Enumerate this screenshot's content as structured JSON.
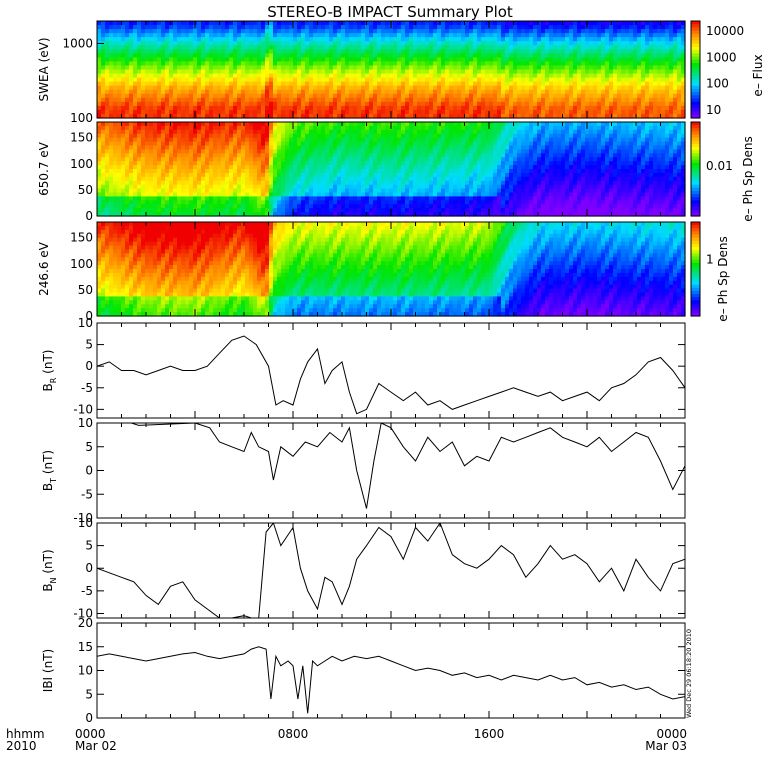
{
  "title": "STEREO-B IMPACT Summary Plot",
  "time_axis": {
    "row1_label": "hhmm",
    "row2_label": "2010",
    "ticks": [
      {
        "hour": 0,
        "label": "0000",
        "date": "Mar 02"
      },
      {
        "hour": 8,
        "label": "0800",
        "date": ""
      },
      {
        "hour": 16,
        "label": "1600",
        "date": ""
      },
      {
        "hour": 24,
        "label": "0000",
        "date": "Mar 03"
      }
    ]
  },
  "timestamp": "Wed Dec 29 06:18:20 2010",
  "chart_data": [
    {
      "type": "heatmap",
      "ylabel": "SWEA (eV)",
      "yscale": "log",
      "ylim": [
        100,
        2000
      ],
      "yticks": [
        "1000",
        "100"
      ],
      "colorbar": {
        "label": "e– Flux",
        "scale": "log",
        "ticks": [
          "10000",
          "1000",
          "100",
          "10"
        ]
      },
      "bands": [
        {
          "y": 130,
          "level": 0.95
        },
        {
          "y": 250,
          "level": 0.82
        },
        {
          "y": 500,
          "level": 0.62
        },
        {
          "y": 1000,
          "level": 0.4
        },
        {
          "y": 1800,
          "level": 0.18
        }
      ]
    },
    {
      "type": "heatmap",
      "ylabel": "650.7 eV",
      "ylim": [
        0,
        180
      ],
      "yticks": [
        "150",
        "100",
        "50",
        "0"
      ],
      "colorbar": {
        "label": "e– Ph Sp Dens",
        "scale": "log",
        "ticks": [
          "0.01"
        ]
      },
      "profile": {
        "hours": [
          0,
          2,
          4,
          6,
          6.9,
          7.2,
          8,
          10,
          12,
          14,
          16,
          17,
          18,
          20,
          22,
          24
        ],
        "level": [
          0.72,
          0.8,
          0.82,
          0.78,
          0.88,
          0.6,
          0.45,
          0.4,
          0.42,
          0.4,
          0.38,
          0.22,
          0.15,
          0.14,
          0.16,
          0.18
        ]
      }
    },
    {
      "type": "heatmap",
      "ylabel": "246.6 eV",
      "ylim": [
        0,
        180
      ],
      "yticks": [
        "150",
        "100",
        "50",
        "0"
      ],
      "colorbar": {
        "label": "e– Ph Sp Dens",
        "scale": "log",
        "ticks": [
          "1"
        ]
      },
      "profile": {
        "hours": [
          0,
          2,
          4,
          6,
          6.9,
          7.2,
          8,
          10,
          12,
          14,
          16,
          17,
          18,
          20,
          22,
          24
        ],
        "level": [
          0.78,
          0.88,
          0.9,
          0.82,
          0.95,
          0.65,
          0.55,
          0.55,
          0.55,
          0.54,
          0.52,
          0.3,
          0.2,
          0.18,
          0.2,
          0.22
        ]
      }
    },
    {
      "type": "line",
      "ylabel": "B_R (nT)",
      "label_main": "B",
      "label_sub": "R",
      "label_unit": "(nT)",
      "ylim": [
        -12,
        10
      ],
      "yticks": [
        10,
        5,
        0,
        -5,
        -10
      ],
      "x_hours": [
        0,
        0.5,
        1,
        1.5,
        2,
        2.5,
        3,
        3.5,
        4,
        4.5,
        5,
        5.5,
        6,
        6.5,
        7,
        7.3,
        7.6,
        8,
        8.3,
        8.6,
        9,
        9.3,
        9.6,
        10,
        10.3,
        10.6,
        11,
        11.5,
        12,
        12.5,
        13,
        13.5,
        14,
        14.5,
        15,
        15.5,
        16,
        16.5,
        17,
        17.5,
        18,
        18.5,
        19,
        19.5,
        20,
        20.5,
        21,
        21.5,
        22,
        22.5,
        23,
        23.5,
        24
      ],
      "y": [
        0,
        1,
        -1,
        -1,
        -2,
        -1,
        0,
        -1,
        -1,
        0,
        3,
        6,
        7,
        5,
        0,
        -9,
        -8,
        -9,
        -3,
        1,
        4,
        -4,
        -1,
        1,
        -6,
        -11,
        -10,
        -4,
        -6,
        -8,
        -6,
        -9,
        -8,
        -10,
        -9,
        -8,
        -7,
        -6,
        -5,
        -6,
        -7,
        -6,
        -8,
        -7,
        -6,
        -8,
        -5,
        -4,
        -2,
        1,
        2,
        -1,
        -5
      ]
    },
    {
      "type": "line",
      "ylabel": "B_T (nT)",
      "label_main": "B",
      "label_sub": "T",
      "label_unit": "(nT)",
      "ylim": [
        -10,
        10
      ],
      "yticks": [
        10,
        5,
        0,
        -5,
        -10
      ],
      "x_hours": [
        1.4,
        1.7,
        4,
        4.6,
        5,
        5.5,
        6,
        6.3,
        6.6,
        7,
        7.2,
        7.5,
        8,
        8.5,
        9,
        9.5,
        10,
        10.3,
        10.6,
        11,
        11.3,
        11.6,
        12,
        12.5,
        13,
        13.5,
        14,
        14.5,
        15,
        15.5,
        16,
        16.5,
        17,
        17.5,
        18,
        18.5,
        19,
        19.5,
        20,
        20.5,
        21,
        21.5,
        22,
        22.5,
        23,
        23.5,
        24
      ],
      "y": [
        10,
        9.5,
        10,
        9,
        6,
        5,
        4,
        8,
        5,
        4,
        -2,
        5,
        3,
        6,
        5,
        8,
        6,
        9,
        0,
        -8,
        2,
        10,
        9,
        5,
        2,
        7,
        4,
        6,
        1,
        3,
        2,
        7,
        6,
        7,
        8,
        9,
        7,
        6,
        5,
        7,
        4,
        6,
        8,
        7,
        2,
        -4,
        1
      ]
    },
    {
      "type": "line",
      "ylabel": "B_N (nT)",
      "label_main": "B",
      "label_sub": "N",
      "label_unit": "(nT)",
      "ylim": [
        -11,
        10
      ],
      "yticks": [
        10,
        5,
        0,
        -5,
        -10
      ],
      "x_hours": [
        0,
        0.5,
        1,
        1.5,
        2,
        2.5,
        3,
        3.5,
        4,
        4.5,
        5,
        5.5,
        6,
        6.3,
        6.6,
        6.9,
        7.2,
        7.5,
        8,
        8.3,
        8.6,
        9,
        9.3,
        9.6,
        10,
        10.3,
        10.6,
        11,
        11.5,
        12,
        12.5,
        13,
        13.5,
        14,
        14.5,
        15,
        15.5,
        16,
        16.5,
        17,
        17.5,
        18,
        18.5,
        19,
        19.5,
        20,
        20.5,
        21,
        21.5,
        22,
        22.5,
        23,
        23.5,
        24
      ],
      "y": [
        0,
        -1,
        -2,
        -3,
        -6,
        -8,
        -4,
        -3,
        -7,
        -9,
        -11,
        -11,
        -10.5,
        -11,
        -11,
        8,
        10,
        5,
        9,
        0,
        -5,
        -9,
        -2,
        -3,
        -8,
        -4,
        2,
        5,
        9,
        7,
        2,
        9,
        6,
        10,
        3,
        1,
        0,
        2,
        5,
        3,
        -2,
        1,
        5,
        2,
        3,
        1,
        -3,
        0,
        -5,
        2,
        -2,
        -5,
        1,
        2
      ]
    },
    {
      "type": "line",
      "ylabel": "|B| (nT)",
      "label_main": "IBI",
      "label_sub": "",
      "label_unit": "(nT)",
      "ylim": [
        0,
        20
      ],
      "yticks": [
        20,
        15,
        10,
        5,
        0
      ],
      "x_hours": [
        0,
        0.5,
        1,
        1.5,
        2,
        2.5,
        3,
        3.5,
        4,
        4.5,
        5,
        5.5,
        6,
        6.3,
        6.6,
        6.9,
        7.1,
        7.3,
        7.5,
        7.8,
        8,
        8.2,
        8.4,
        8.6,
        8.8,
        9,
        9.3,
        9.6,
        10,
        10.5,
        11,
        11.5,
        12,
        12.5,
        13,
        13.5,
        14,
        14.5,
        15,
        15.5,
        16,
        16.5,
        17,
        17.5,
        18,
        18.5,
        19,
        19.5,
        20,
        20.5,
        21,
        21.5,
        22,
        22.5,
        23,
        23.5,
        24
      ],
      "y": [
        13,
        13.5,
        13,
        12.5,
        12,
        12.5,
        13,
        13.5,
        13.8,
        13,
        12.5,
        13,
        13.5,
        14.5,
        15,
        14.5,
        4,
        13,
        11,
        12,
        11,
        4,
        11,
        1,
        12,
        11,
        12,
        13,
        12,
        13,
        12.5,
        13,
        12,
        11,
        10,
        10.5,
        10,
        9,
        9.5,
        8.5,
        9,
        8,
        9,
        8.5,
        8,
        9,
        8,
        8.5,
        7,
        7.5,
        6.5,
        7,
        6,
        6.5,
        5,
        4,
        4.5
      ]
    }
  ]
}
